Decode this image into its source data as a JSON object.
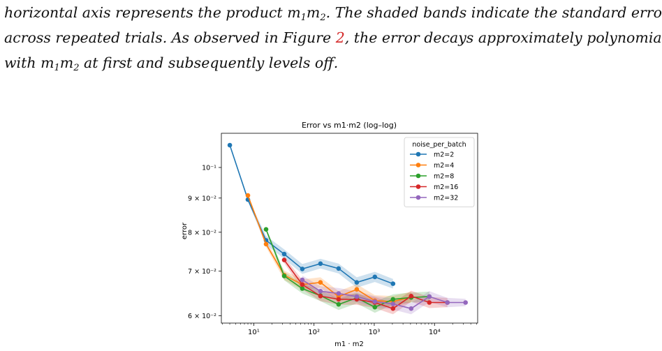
{
  "paragraph": {
    "line1_pre": "horizontal axis represents the product ",
    "line1_post": ". The shaded bands indicate the standard errors",
    "line2_pre": "across repeated trials. As observed in Figure ",
    "figure_ref": "2",
    "line2_post": ", the error decays approximately polynomially",
    "line3_pre": "with ",
    "line3_post": " at first and subsequently levels off.",
    "math_symbol": "m",
    "math_sub1": "1",
    "math_sub2": "2",
    "ref_color": "#d42a2a"
  },
  "chart_data": {
    "type": "line",
    "title": "Error vs m1·m2 (log–log)",
    "xlabel": "m1 · m2",
    "ylabel": "error",
    "xscale": "log",
    "yscale": "log",
    "xlim": [
      2.9,
      52000
    ],
    "ylim": [
      0.0585,
      0.1125
    ],
    "x_ticks": [
      {
        "value": 10,
        "label": "10¹"
      },
      {
        "value": 100,
        "label": "10²"
      },
      {
        "value": 1000,
        "label": "10³"
      },
      {
        "value": 10000,
        "label": "10⁴"
      }
    ],
    "y_ticks": [
      {
        "value": 0.06,
        "label": "6 × 10⁻²"
      },
      {
        "value": 0.07,
        "label": "7 × 10⁻²"
      },
      {
        "value": 0.08,
        "label": "8 × 10⁻²"
      },
      {
        "value": 0.09,
        "label": "9 × 10⁻²"
      },
      {
        "value": 0.1,
        "label": "10⁻¹"
      }
    ],
    "grid": false,
    "legend_title": "noise_per_batch",
    "legend_position": "top-right",
    "series": [
      {
        "name": "m2=2",
        "color": "#1f77b4",
        "x": [
          4,
          8,
          16,
          32,
          64,
          128,
          256,
          512,
          1024,
          2048
        ],
        "y": [
          0.108,
          0.0895,
          0.0778,
          0.0742,
          0.0705,
          0.0718,
          0.0706,
          0.0673,
          0.0686,
          0.067
        ],
        "err": [
          0.0005,
          0.0006,
          0.0012,
          0.0012,
          0.0012,
          0.0012,
          0.0012,
          0.0012,
          0.0012,
          0.0011
        ]
      },
      {
        "name": "m2=4",
        "color": "#ff7f0e",
        "x": [
          8,
          16,
          32,
          64,
          128,
          256,
          512,
          1024,
          2048,
          4096
        ],
        "y": [
          0.0908,
          0.0768,
          0.069,
          0.0668,
          0.0673,
          0.0641,
          0.0657,
          0.0632,
          0.063,
          0.064
        ],
        "err": [
          0.0005,
          0.0008,
          0.0011,
          0.0012,
          0.0012,
          0.0012,
          0.0012,
          0.0012,
          0.0012,
          0.0012
        ]
      },
      {
        "name": "m2=8",
        "color": "#2ca02c",
        "x": [
          16,
          32,
          64,
          128,
          256,
          512,
          1024,
          2048,
          4096,
          8192
        ],
        "y": [
          0.0808,
          0.0688,
          0.0659,
          0.0643,
          0.0624,
          0.0638,
          0.0618,
          0.0635,
          0.0639,
          0.0641
        ],
        "err": [
          0.0005,
          0.001,
          0.0011,
          0.0012,
          0.0012,
          0.0012,
          0.0012,
          0.0011,
          0.0011,
          0.0011
        ]
      },
      {
        "name": "m2=16",
        "color": "#d62728",
        "x": [
          32,
          64,
          128,
          256,
          512,
          1024,
          2048,
          4096,
          8192,
          16384
        ],
        "y": [
          0.0727,
          0.0668,
          0.0642,
          0.0635,
          0.0635,
          0.0628,
          0.0615,
          0.0642,
          0.0628,
          0.0628
        ],
        "err": [
          0.0008,
          0.0011,
          0.0011,
          0.0012,
          0.0012,
          0.0012,
          0.0012,
          0.0012,
          0.0012,
          0.001
        ]
      },
      {
        "name": "m2=32",
        "color": "#9467bd",
        "x": [
          64,
          128,
          256,
          512,
          1024,
          2048,
          4096,
          8192,
          16384,
          32768
        ],
        "y": [
          0.0679,
          0.0653,
          0.0648,
          0.0641,
          0.063,
          0.0625,
          0.0615,
          0.0641,
          0.0628,
          0.0628
        ],
        "err": [
          0.001,
          0.0011,
          0.0012,
          0.0012,
          0.0012,
          0.0012,
          0.0012,
          0.0012,
          0.001,
          0.0008
        ]
      }
    ]
  }
}
